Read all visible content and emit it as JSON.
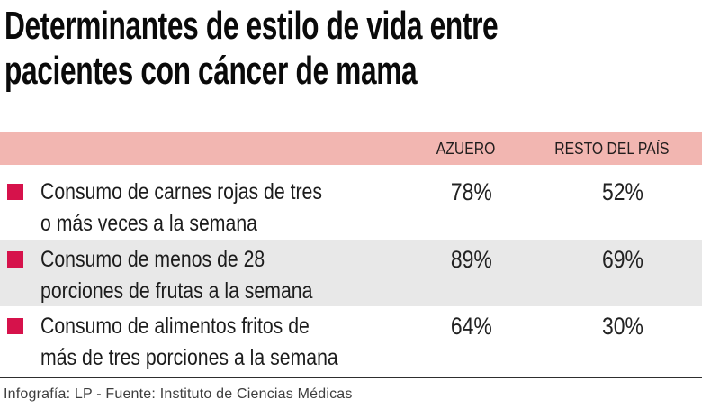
{
  "title": {
    "line1": "Determinantes de estilo de vida entre",
    "line2": "pacientes con cáncer de mama"
  },
  "table": {
    "columns": [
      "AZUERO",
      "RESTO DEL PAÍS"
    ],
    "rows": [
      {
        "label_line1": "Consumo de carnes rojas de tres",
        "label_line2": "o más veces a la semana",
        "azuero": "78%",
        "resto": "52%"
      },
      {
        "label_line1": "Consumo de menos de 28",
        "label_line2": "porciones de frutas a la semana",
        "azuero": "89%",
        "resto": "69%"
      },
      {
        "label_line1": "Consumo de alimentos fritos de",
        "label_line2": "más de tres porciones a la semana",
        "azuero": "64%",
        "resto": "30%"
      }
    ]
  },
  "footer": "Infografía: LP - Fuente: Instituto de Ciencias Médicas",
  "colors": {
    "bullet": "#d6124b",
    "band": "#f2b6b1",
    "rowalt": "#e8e8e8",
    "title": "#0a0a0a",
    "text": "#1c1c1c",
    "footer": "#3d3d3d",
    "divider": "#2e2e2e"
  },
  "chart_data": {
    "type": "table",
    "title": "Determinantes de estilo de vida entre pacientes con cáncer de mama",
    "columns": [
      "AZUERO",
      "RESTO DEL PAÍS"
    ],
    "categories": [
      "Consumo de carnes rojas de tres o más veces a la semana",
      "Consumo de menos de 28 porciones de frutas a la semana",
      "Consumo de alimentos fritos de más de tres porciones a la semana"
    ],
    "series": [
      {
        "name": "Azuero",
        "values": [
          78,
          89,
          64
        ]
      },
      {
        "name": "Resto del país",
        "values": [
          52,
          69,
          30
        ]
      }
    ],
    "unit": "%",
    "source": "Instituto de Ciencias Médicas",
    "credit": "Infografía: LP"
  }
}
